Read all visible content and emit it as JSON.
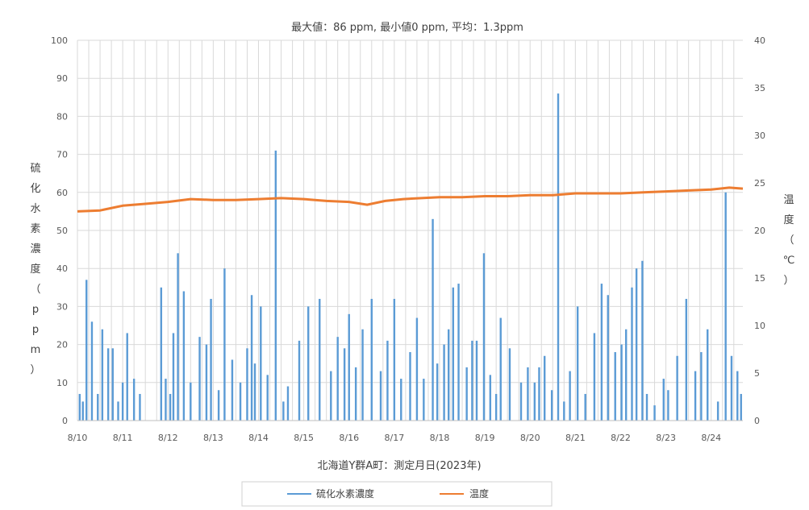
{
  "chart_data": {
    "type": "bar+line",
    "title": "最大値：86 ppm, 最小値0 ppm, 平均：1.3ppm",
    "xlabel": "北海道Y群A町：測定月日(2023年)",
    "ylabel_left": [
      "硫",
      "化",
      "水",
      "素",
      "濃",
      "度",
      "（",
      "p",
      "p",
      "m",
      "）"
    ],
    "ylabel_right": [
      "温",
      "度",
      "（",
      "℃",
      "）"
    ],
    "ylim_left": [
      0,
      100
    ],
    "ylim_right": [
      0,
      40
    ],
    "yticks_left": [
      "0",
      "10",
      "20",
      "30",
      "40",
      "50",
      "60",
      "70",
      "80",
      "90",
      "100"
    ],
    "yticks_right": [
      "0",
      "5",
      "10",
      "15",
      "20",
      "25",
      "30",
      "35",
      "40"
    ],
    "x_categories": [
      "8/10",
      "8/11",
      "8/12",
      "8/13",
      "8/14",
      "8/15",
      "8/16",
      "8/17",
      "8/18",
      "8/19",
      "8/20",
      "8/21",
      "8/22",
      "8/23",
      "8/24"
    ],
    "x_range_days": [
      0,
      14.7
    ],
    "legend": {
      "placement": "bottom"
    },
    "grid": true,
    "colors": {
      "h2s": "#5b9bd5",
      "temp": "#ed7d31",
      "grid": "#d9d9d9"
    },
    "series": [
      {
        "name": "硫化水素濃度",
        "axis": "left",
        "style": "bars",
        "points": [
          [
            0.05,
            7
          ],
          [
            0.12,
            5
          ],
          [
            0.2,
            37
          ],
          [
            0.32,
            26
          ],
          [
            0.45,
            7
          ],
          [
            0.55,
            24
          ],
          [
            0.68,
            19
          ],
          [
            0.78,
            19
          ],
          [
            0.9,
            5
          ],
          [
            1.0,
            10
          ],
          [
            1.1,
            23
          ],
          [
            1.25,
            11
          ],
          [
            1.38,
            7
          ],
          [
            1.85,
            35
          ],
          [
            1.95,
            11
          ],
          [
            2.05,
            7
          ],
          [
            2.12,
            23
          ],
          [
            2.22,
            44
          ],
          [
            2.35,
            34
          ],
          [
            2.5,
            10
          ],
          [
            2.7,
            22
          ],
          [
            2.85,
            20
          ],
          [
            2.95,
            32
          ],
          [
            3.12,
            8
          ],
          [
            3.25,
            40
          ],
          [
            3.42,
            16
          ],
          [
            3.6,
            10
          ],
          [
            3.75,
            19
          ],
          [
            3.85,
            33
          ],
          [
            3.92,
            15
          ],
          [
            4.05,
            30
          ],
          [
            4.2,
            12
          ],
          [
            4.38,
            71
          ],
          [
            4.55,
            5
          ],
          [
            4.65,
            9
          ],
          [
            4.9,
            21
          ],
          [
            5.1,
            30
          ],
          [
            5.35,
            32
          ],
          [
            5.6,
            13
          ],
          [
            5.75,
            22
          ],
          [
            5.9,
            19
          ],
          [
            6.0,
            28
          ],
          [
            6.15,
            14
          ],
          [
            6.3,
            24
          ],
          [
            6.5,
            32
          ],
          [
            6.7,
            13
          ],
          [
            6.85,
            21
          ],
          [
            7.0,
            32
          ],
          [
            7.15,
            11
          ],
          [
            7.35,
            18
          ],
          [
            7.5,
            27
          ],
          [
            7.65,
            11
          ],
          [
            7.85,
            53
          ],
          [
            7.95,
            15
          ],
          [
            8.1,
            20
          ],
          [
            8.2,
            24
          ],
          [
            8.3,
            35
          ],
          [
            8.42,
            36
          ],
          [
            8.6,
            14
          ],
          [
            8.72,
            21
          ],
          [
            8.82,
            21
          ],
          [
            8.98,
            44
          ],
          [
            9.12,
            12
          ],
          [
            9.25,
            7
          ],
          [
            9.35,
            27
          ],
          [
            9.55,
            19
          ],
          [
            9.8,
            10
          ],
          [
            9.95,
            14
          ],
          [
            10.1,
            10
          ],
          [
            10.2,
            14
          ],
          [
            10.32,
            17
          ],
          [
            10.48,
            8
          ],
          [
            10.62,
            86
          ],
          [
            10.75,
            5
          ],
          [
            10.88,
            13
          ],
          [
            11.05,
            30
          ],
          [
            11.22,
            7
          ],
          [
            11.42,
            23
          ],
          [
            11.58,
            36
          ],
          [
            11.72,
            33
          ],
          [
            11.88,
            18
          ],
          [
            12.02,
            20
          ],
          [
            12.12,
            24
          ],
          [
            12.25,
            35
          ],
          [
            12.35,
            40
          ],
          [
            12.48,
            42
          ],
          [
            12.58,
            7
          ],
          [
            12.75,
            4
          ],
          [
            12.95,
            11
          ],
          [
            13.05,
            8
          ],
          [
            13.25,
            17
          ],
          [
            13.45,
            32
          ],
          [
            13.65,
            13
          ],
          [
            13.78,
            18
          ],
          [
            13.92,
            24
          ],
          [
            14.15,
            5
          ],
          [
            14.32,
            60
          ],
          [
            14.45,
            17
          ],
          [
            14.58,
            13
          ],
          [
            14.66,
            7
          ]
        ]
      },
      {
        "name": "温度",
        "axis": "right",
        "style": "line",
        "points": [
          [
            0,
            22.0
          ],
          [
            0.5,
            22.1
          ],
          [
            1.0,
            22.6
          ],
          [
            1.5,
            22.8
          ],
          [
            2.0,
            23.0
          ],
          [
            2.5,
            23.3
          ],
          [
            3.0,
            23.2
          ],
          [
            3.5,
            23.2
          ],
          [
            4.0,
            23.3
          ],
          [
            4.5,
            23.4
          ],
          [
            5.0,
            23.3
          ],
          [
            5.5,
            23.1
          ],
          [
            6.0,
            23.0
          ],
          [
            6.4,
            22.7
          ],
          [
            6.8,
            23.1
          ],
          [
            7.2,
            23.3
          ],
          [
            7.6,
            23.4
          ],
          [
            8.0,
            23.5
          ],
          [
            8.5,
            23.5
          ],
          [
            9.0,
            23.6
          ],
          [
            9.5,
            23.6
          ],
          [
            10.0,
            23.7
          ],
          [
            10.5,
            23.7
          ],
          [
            11.0,
            23.9
          ],
          [
            11.5,
            23.9
          ],
          [
            12.0,
            23.9
          ],
          [
            12.5,
            24.0
          ],
          [
            13.0,
            24.1
          ],
          [
            13.5,
            24.2
          ],
          [
            14.0,
            24.3
          ],
          [
            14.4,
            24.5
          ],
          [
            14.7,
            24.4
          ]
        ]
      }
    ]
  }
}
